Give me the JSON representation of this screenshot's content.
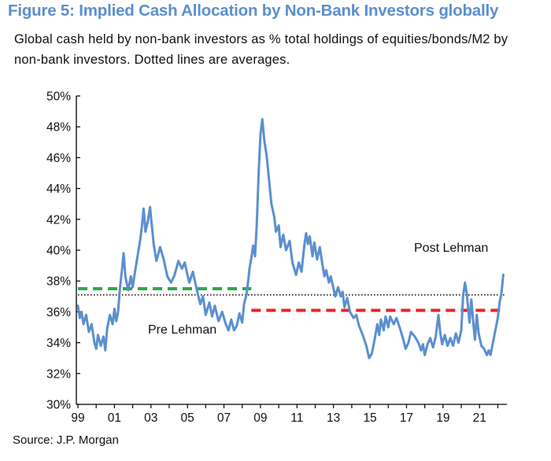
{
  "title": "Figure 5: Implied Cash Allocation by Non-Bank Investors globally",
  "subtitle": "Global cash held by non-bank investors as % total holdings of equities/bonds/M2 by non-bank investors. Dotted lines are averages.",
  "source": "Source: J.P. Morgan",
  "colors": {
    "title": "#5b8fcf",
    "series": "#5b8fcf",
    "pre_avg": "#2ea84a",
    "post_avg": "#e3262a",
    "overall_avg": "#000000"
  },
  "chart_data": {
    "type": "line",
    "title": "Figure 5: Implied Cash Allocation by Non-Bank Investors globally",
    "xlabel": "",
    "ylabel": "",
    "xlim": [
      1999,
      2022.5
    ],
    "ylim": [
      30,
      50
    ],
    "x_ticks": [
      1999,
      2001,
      2003,
      2005,
      2007,
      2009,
      2011,
      2013,
      2015,
      2017,
      2019,
      2021
    ],
    "x_tick_labels": [
      "99",
      "01",
      "03",
      "05",
      "07",
      "09",
      "11",
      "13",
      "15",
      "17",
      "19",
      "21"
    ],
    "y_ticks": [
      30,
      32,
      34,
      36,
      38,
      40,
      42,
      44,
      46,
      48,
      50
    ],
    "y_tick_labels": [
      "30%",
      "32%",
      "34%",
      "36%",
      "38%",
      "40%",
      "42%",
      "44%",
      "46%",
      "48%",
      "50%"
    ],
    "grid": false,
    "series": [
      {
        "color": "#5b8fcf",
        "points": [
          [
            1999.0,
            36.4
          ],
          [
            1999.1,
            35.6
          ],
          [
            1999.2,
            36.0
          ],
          [
            1999.3,
            35.2
          ],
          [
            1999.45,
            35.8
          ],
          [
            1999.6,
            34.7
          ],
          [
            1999.75,
            35.2
          ],
          [
            1999.9,
            34.0
          ],
          [
            2000.0,
            33.6
          ],
          [
            2000.1,
            34.5
          ],
          [
            2000.25,
            33.8
          ],
          [
            2000.4,
            34.4
          ],
          [
            2000.5,
            33.5
          ],
          [
            2000.6,
            34.9
          ],
          [
            2000.75,
            35.8
          ],
          [
            2000.9,
            35.2
          ],
          [
            2001.0,
            36.2
          ],
          [
            2001.1,
            35.4
          ],
          [
            2001.2,
            36.0
          ],
          [
            2001.3,
            37.5
          ],
          [
            2001.4,
            38.6
          ],
          [
            2001.5,
            39.8
          ],
          [
            2001.6,
            38.3
          ],
          [
            2001.75,
            37.4
          ],
          [
            2001.9,
            38.3
          ],
          [
            2002.0,
            37.6
          ],
          [
            2002.1,
            38.4
          ],
          [
            2002.25,
            39.5
          ],
          [
            2002.4,
            40.6
          ],
          [
            2002.5,
            41.5
          ],
          [
            2002.6,
            42.7
          ],
          [
            2002.7,
            41.2
          ],
          [
            2002.85,
            42.0
          ],
          [
            2002.95,
            42.8
          ],
          [
            2003.05,
            41.6
          ],
          [
            2003.15,
            40.4
          ],
          [
            2003.3,
            39.3
          ],
          [
            2003.5,
            40.2
          ],
          [
            2003.7,
            39.4
          ],
          [
            2003.9,
            38.3
          ],
          [
            2004.1,
            37.9
          ],
          [
            2004.3,
            38.4
          ],
          [
            2004.5,
            39.3
          ],
          [
            2004.7,
            38.8
          ],
          [
            2004.85,
            39.2
          ],
          [
            2005.0,
            38.4
          ],
          [
            2005.1,
            37.9
          ],
          [
            2005.3,
            38.6
          ],
          [
            2005.5,
            37.5
          ],
          [
            2005.7,
            36.5
          ],
          [
            2005.85,
            37.0
          ],
          [
            2006.0,
            35.8
          ],
          [
            2006.2,
            36.6
          ],
          [
            2006.35,
            35.7
          ],
          [
            2006.5,
            36.4
          ],
          [
            2006.7,
            35.4
          ],
          [
            2006.9,
            36.0
          ],
          [
            2007.1,
            35.2
          ],
          [
            2007.25,
            34.8
          ],
          [
            2007.4,
            35.5
          ],
          [
            2007.55,
            34.8
          ],
          [
            2007.7,
            35.1
          ],
          [
            2007.85,
            35.9
          ],
          [
            2008.0,
            35.3
          ],
          [
            2008.1,
            36.5
          ],
          [
            2008.25,
            37.2
          ],
          [
            2008.4,
            38.8
          ],
          [
            2008.5,
            39.5
          ],
          [
            2008.6,
            40.3
          ],
          [
            2008.7,
            39.6
          ],
          [
            2008.8,
            41.8
          ],
          [
            2008.9,
            45.0
          ],
          [
            2009.0,
            47.5
          ],
          [
            2009.1,
            48.5
          ],
          [
            2009.2,
            47.2
          ],
          [
            2009.35,
            46.0
          ],
          [
            2009.5,
            44.2
          ],
          [
            2009.6,
            43.0
          ],
          [
            2009.75,
            42.2
          ],
          [
            2009.85,
            41.2
          ],
          [
            2010.0,
            41.6
          ],
          [
            2010.1,
            40.2
          ],
          [
            2010.25,
            41.0
          ],
          [
            2010.4,
            40.0
          ],
          [
            2010.6,
            40.6
          ],
          [
            2010.75,
            39.2
          ],
          [
            2010.95,
            38.4
          ],
          [
            2011.1,
            39.2
          ],
          [
            2011.25,
            38.6
          ],
          [
            2011.4,
            40.3
          ],
          [
            2011.5,
            41.1
          ],
          [
            2011.6,
            40.4
          ],
          [
            2011.7,
            40.9
          ],
          [
            2011.85,
            39.6
          ],
          [
            2011.95,
            40.5
          ],
          [
            2012.1,
            39.4
          ],
          [
            2012.25,
            40.2
          ],
          [
            2012.4,
            39.0
          ],
          [
            2012.5,
            38.3
          ],
          [
            2012.6,
            38.7
          ],
          [
            2012.75,
            37.9
          ],
          [
            2012.85,
            38.3
          ],
          [
            2013.0,
            37.5
          ],
          [
            2013.1,
            37.0
          ],
          [
            2013.25,
            37.6
          ],
          [
            2013.4,
            37.0
          ],
          [
            2013.5,
            37.3
          ],
          [
            2013.6,
            36.3
          ],
          [
            2013.75,
            36.9
          ],
          [
            2013.9,
            36.0
          ],
          [
            2014.1,
            35.6
          ],
          [
            2014.25,
            35.8
          ],
          [
            2014.4,
            35.1
          ],
          [
            2014.6,
            34.5
          ],
          [
            2014.8,
            33.8
          ],
          [
            2014.95,
            33.0
          ],
          [
            2015.1,
            33.3
          ],
          [
            2015.25,
            34.2
          ],
          [
            2015.4,
            35.2
          ],
          [
            2015.5,
            34.5
          ],
          [
            2015.6,
            35.5
          ],
          [
            2015.75,
            34.8
          ],
          [
            2015.85,
            35.7
          ],
          [
            2016.0,
            35.0
          ],
          [
            2016.1,
            35.7
          ],
          [
            2016.3,
            35.2
          ],
          [
            2016.45,
            35.6
          ],
          [
            2016.65,
            34.9
          ],
          [
            2016.8,
            34.3
          ],
          [
            2016.95,
            33.6
          ],
          [
            2017.1,
            34.0
          ],
          [
            2017.25,
            34.7
          ],
          [
            2017.45,
            34.4
          ],
          [
            2017.65,
            34.0
          ],
          [
            2017.8,
            33.5
          ],
          [
            2017.9,
            33.9
          ],
          [
            2018.0,
            33.2
          ],
          [
            2018.15,
            33.9
          ],
          [
            2018.3,
            34.3
          ],
          [
            2018.45,
            33.7
          ],
          [
            2018.6,
            34.4
          ],
          [
            2018.75,
            35.8
          ],
          [
            2018.85,
            34.6
          ],
          [
            2018.95,
            33.9
          ],
          [
            2019.1,
            34.5
          ],
          [
            2019.25,
            33.8
          ],
          [
            2019.4,
            34.3
          ],
          [
            2019.55,
            33.8
          ],
          [
            2019.7,
            34.6
          ],
          [
            2019.85,
            34.0
          ],
          [
            2020.0,
            34.8
          ],
          [
            2020.1,
            37.0
          ],
          [
            2020.2,
            37.9
          ],
          [
            2020.3,
            37.2
          ],
          [
            2020.45,
            35.3
          ],
          [
            2020.55,
            36.8
          ],
          [
            2020.65,
            35.4
          ],
          [
            2020.75,
            34.2
          ],
          [
            2020.85,
            35.8
          ],
          [
            2020.95,
            34.6
          ],
          [
            2021.1,
            33.8
          ],
          [
            2021.25,
            33.6
          ],
          [
            2021.4,
            33.2
          ],
          [
            2021.5,
            33.5
          ],
          [
            2021.6,
            33.2
          ],
          [
            2021.75,
            34.1
          ],
          [
            2021.85,
            34.7
          ],
          [
            2022.0,
            35.6
          ],
          [
            2022.1,
            36.6
          ],
          [
            2022.2,
            37.2
          ],
          [
            2022.3,
            38.4
          ]
        ]
      }
    ],
    "averages": [
      {
        "label": "Pre Lehman",
        "value": 37.5,
        "x_range": [
          1999,
          2008.5
        ],
        "color": "#2ea84a",
        "style": "dashed"
      },
      {
        "label": "Post Lehman",
        "value": 36.1,
        "x_range": [
          2008.5,
          2022.4
        ],
        "color": "#e3262a",
        "style": "dashed"
      },
      {
        "value": 37.1,
        "x_range": [
          1999,
          2022.4
        ],
        "color": "#000000",
        "style": "dotted"
      }
    ]
  }
}
